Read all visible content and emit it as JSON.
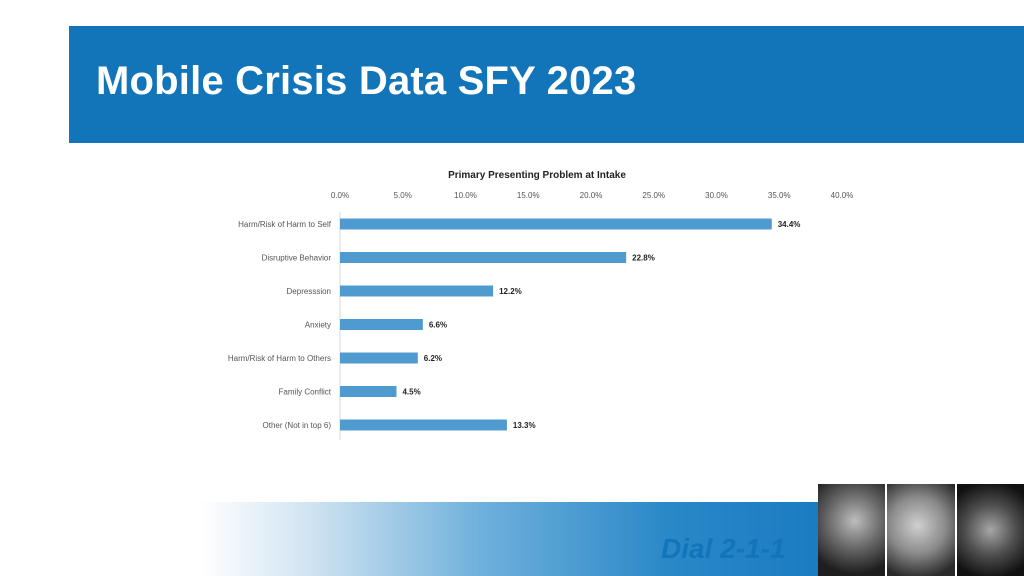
{
  "slide": {
    "title": "Mobile Crisis Data SFY 2023",
    "footer_text": "Dial 2-1-1"
  },
  "colors": {
    "title_bar": "#1274b9",
    "bar": "#4f9bd0",
    "footer_text": "#1274b9"
  },
  "icons": [
    "photo-collage"
  ],
  "chart_data": {
    "type": "bar",
    "orientation": "horizontal",
    "title": "Primary Presenting Problem at Intake",
    "categories": [
      "Harm/Risk of Harm to Self",
      "Disruptive Behavior",
      "Depresssion",
      "Anxiety",
      "Harm/Risk of Harm to Others",
      "Family Conflict",
      "Other (Not in top 6)"
    ],
    "values": [
      34.4,
      22.8,
      12.2,
      6.6,
      6.2,
      4.5,
      13.3
    ],
    "value_labels": [
      "34.4%",
      "22.8%",
      "12.2%",
      "6.6%",
      "6.2%",
      "4.5%",
      "13.3%"
    ],
    "x_ticks": [
      0,
      5,
      10,
      15,
      20,
      25,
      30,
      35,
      40
    ],
    "x_tick_labels": [
      "0.0%",
      "5.0%",
      "10.0%",
      "15.0%",
      "20.0%",
      "25.0%",
      "30.0%",
      "35.0%",
      "40.0%"
    ],
    "xlim": [
      0,
      40
    ],
    "x_axis_position": "top",
    "grid": false,
    "legend": "none"
  }
}
